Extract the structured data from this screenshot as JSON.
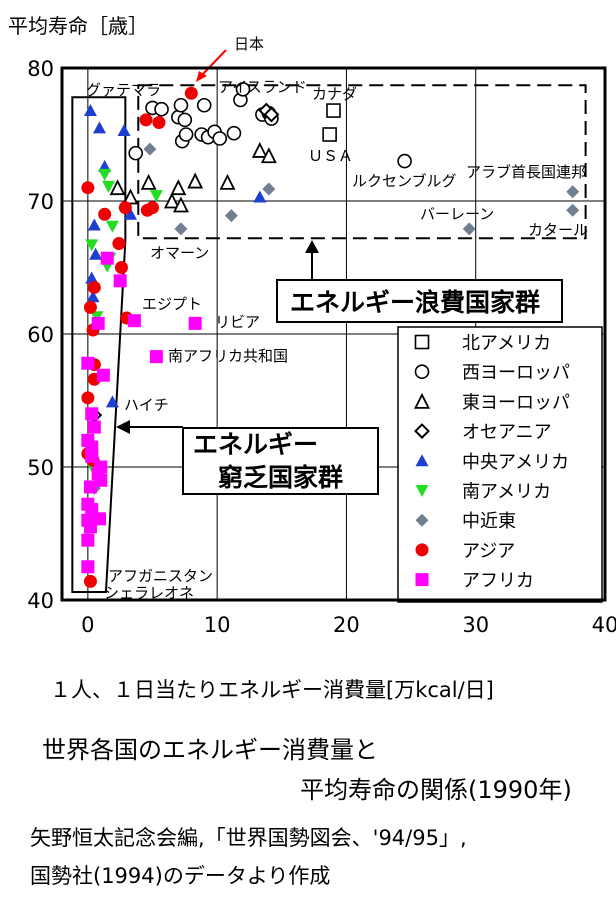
{
  "y_axis_title": "平均寿命［歳］",
  "x_axis_title": "１人、１日当たりエネルギー消費量[万kcal/日]",
  "caption_line1": "世界各国のエネルギー消費量と",
  "caption_line2": "平均寿命の関係(1990年)",
  "source_line1": "矢野恒太記念会編,「世界国勢図会、'94/95」,",
  "source_line2": "国勢社(1994)のデータより作成",
  "chart_data": {
    "type": "scatter",
    "xlim": [
      -2,
      40
    ],
    "ylim": [
      40,
      80
    ],
    "x_ticks": [
      0,
      10,
      20,
      30,
      40
    ],
    "y_ticks": [
      40,
      50,
      60,
      70,
      80
    ],
    "grid": true,
    "legend_position": "right",
    "series": [
      {
        "name": "北アメリカ",
        "marker": "square-open",
        "color": "#000000",
        "points": [
          [
            19,
            76.8
          ],
          [
            18.7,
            75
          ]
        ]
      },
      {
        "name": "西ヨーロッパ",
        "marker": "circle-open",
        "color": "#000000",
        "points": [
          [
            5,
            77
          ],
          [
            5.7,
            76.9
          ],
          [
            7,
            76.3
          ],
          [
            7.2,
            77.2
          ],
          [
            7.5,
            76.1
          ],
          [
            9,
            77.2
          ],
          [
            11.8,
            77.6
          ],
          [
            12,
            78.4
          ],
          [
            13.5,
            76.5
          ],
          [
            14,
            76.6
          ],
          [
            14.2,
            76.2
          ],
          [
            7.3,
            74.5
          ],
          [
            7.6,
            75
          ],
          [
            8.8,
            75
          ],
          [
            9.3,
            74.8
          ],
          [
            9.8,
            75.2
          ],
          [
            10.2,
            74.7
          ],
          [
            11.3,
            75.1
          ],
          [
            3.7,
            73.6
          ],
          [
            24.5,
            73
          ]
        ]
      },
      {
        "name": "東ヨーロッパ",
        "marker": "triangle-open",
        "color": "#000000",
        "points": [
          [
            2.3,
            71
          ],
          [
            3.3,
            70.3
          ],
          [
            4.7,
            71.4
          ],
          [
            6.5,
            70
          ],
          [
            7,
            71
          ],
          [
            7.2,
            69.7
          ],
          [
            8.3,
            71.5
          ],
          [
            10.8,
            71.4
          ],
          [
            13.3,
            73.8
          ],
          [
            14,
            73.4
          ]
        ]
      },
      {
        "name": "オセアニア",
        "marker": "diamond-open",
        "color": "#000000",
        "points": [
          [
            13.8,
            76.8
          ],
          [
            14.2,
            76.5
          ],
          [
            0.5,
            53.9
          ]
        ]
      },
      {
        "name": "中央アメリカ",
        "marker": "triangle",
        "color": "#1f3fd0",
        "points": [
          [
            0.2,
            76.8
          ],
          [
            0.9,
            75.5
          ],
          [
            1.3,
            72.6
          ],
          [
            2.8,
            75.3
          ],
          [
            0.5,
            68.2
          ],
          [
            0.3,
            64.2
          ],
          [
            0.4,
            62.8
          ],
          [
            0.6,
            66
          ],
          [
            3.3,
            69
          ],
          [
            13.3,
            70.3
          ],
          [
            1.9,
            54.9
          ]
        ]
      },
      {
        "name": "南アメリカ",
        "marker": "triangle-down",
        "color": "#22dd22",
        "points": [
          [
            1.3,
            72
          ],
          [
            1.6,
            71.1
          ],
          [
            0.3,
            66.7
          ],
          [
            1.9,
            68.1
          ],
          [
            1.7,
            65.7
          ],
          [
            1.5,
            65.1
          ],
          [
            0.7,
            61.3
          ],
          [
            0.4,
            49.9
          ],
          [
            5.3,
            70.4
          ]
        ]
      },
      {
        "name": "中近東",
        "marker": "diamond",
        "color": "#708090",
        "points": [
          [
            4.8,
            73.9
          ],
          [
            14,
            70.9
          ],
          [
            11.1,
            68.9
          ],
          [
            7.2,
            67.9
          ],
          [
            29.5,
            67.9
          ],
          [
            37.5,
            70.7
          ],
          [
            37.5,
            69.3
          ],
          [
            0.5,
            48.4
          ]
        ]
      },
      {
        "name": "アジア",
        "marker": "circle",
        "color": "#ee0000",
        "points": [
          [
            8,
            78.1
          ],
          [
            4.5,
            76.1
          ],
          [
            5.5,
            75.9
          ],
          [
            0,
            71
          ],
          [
            4.6,
            69.3
          ],
          [
            1.3,
            69
          ],
          [
            2.9,
            69.5
          ],
          [
            5,
            69.5
          ],
          [
            2.4,
            66.8
          ],
          [
            2.6,
            65
          ],
          [
            0.5,
            63.5
          ],
          [
            0.2,
            62
          ],
          [
            3,
            61.2
          ],
          [
            0.4,
            60.3
          ],
          [
            0.5,
            57.7
          ],
          [
            0.5,
            56.6
          ],
          [
            0,
            55.2
          ],
          [
            0,
            51
          ],
          [
            0.4,
            50.5
          ],
          [
            0.2,
            41.4
          ]
        ]
      },
      {
        "name": "アフリカ",
        "marker": "square",
        "color": "#ff00ff",
        "points": [
          [
            3.6,
            61
          ],
          [
            8.3,
            60.8
          ],
          [
            5.3,
            58.3
          ],
          [
            0,
            57.8
          ],
          [
            1.2,
            56.9
          ],
          [
            0.3,
            54
          ],
          [
            0.5,
            53
          ],
          [
            0,
            52
          ],
          [
            0.3,
            51.5
          ],
          [
            0.3,
            50.8
          ],
          [
            0.8,
            49.5
          ],
          [
            1,
            50
          ],
          [
            0.2,
            48.5
          ],
          [
            0,
            47.2
          ],
          [
            0.3,
            46.8
          ],
          [
            0.9,
            46.1
          ],
          [
            0,
            46
          ],
          [
            0.2,
            45.5
          ],
          [
            0,
            44.5
          ],
          [
            0,
            42.5
          ],
          [
            2.5,
            64
          ],
          [
            1.5,
            65.7
          ],
          [
            0.8,
            60.8
          ],
          [
            1,
            49
          ]
        ]
      }
    ],
    "annotations": {
      "japan": "日本",
      "iceland": "アイスランド",
      "canada": "カナダ",
      "guatemala": "グァテマラ",
      "usa": "ＵＳＡ",
      "luxembourg": "ルクセンブルグ",
      "uae": "アラブ首長国連邦",
      "bahrain": "バーレーン",
      "qatar": "カタール",
      "oman": "オマーン",
      "egypt": "エジプト",
      "libya": "リビア",
      "south_africa": "南アフリカ共和国",
      "haiti": "ハイチ",
      "afghanistan": "アフガニスタン",
      "sierra_leone": "シェラレオネ"
    },
    "group_labels": {
      "wasteful": "エネルギー浪費国家群",
      "poor_line1": "エネルギー",
      "poor_line2": "窮乏国家群"
    }
  }
}
